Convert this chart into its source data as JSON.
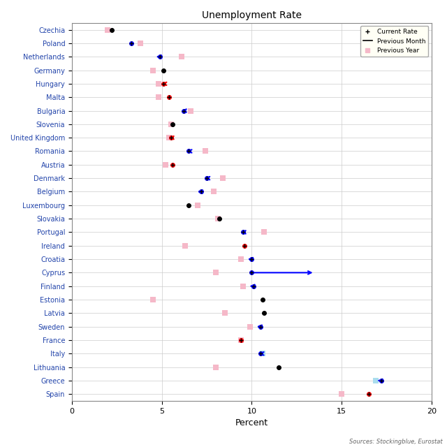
{
  "title": "Unemployment Rate",
  "xlabel": "Percent",
  "source": "Sources: Stockingblue, Eurostat",
  "countries": [
    "Czechia",
    "Poland",
    "Netherlands",
    "Germany",
    "Hungary",
    "Malta",
    "Bulgaria",
    "Slovenia",
    "United Kingdom",
    "Romania",
    "Austria",
    "Denmark",
    "Belgium",
    "Luxembourg",
    "Slovakia",
    "Portugal",
    "Ireland",
    "Croatia",
    "Cyprus",
    "Finland",
    "Estonia",
    "Latvia",
    "Sweden",
    "France",
    "Italy",
    "Lithuania",
    "Greece",
    "Spain"
  ],
  "current_rate": [
    2.2,
    3.3,
    4.9,
    5.1,
    5.1,
    5.4,
    6.2,
    5.6,
    5.5,
    6.5,
    5.6,
    7.5,
    7.2,
    6.5,
    8.2,
    9.5,
    9.6,
    10.0,
    10.0,
    10.1,
    10.6,
    10.7,
    10.5,
    9.4,
    10.5,
    11.5,
    17.2,
    16.5
  ],
  "previous_month": [
    null,
    3.3,
    4.7,
    null,
    5.0,
    null,
    6.1,
    null,
    5.4,
    6.4,
    null,
    7.4,
    7.0,
    null,
    null,
    9.4,
    null,
    9.8,
    13.5,
    9.9,
    null,
    null,
    10.3,
    null,
    10.4,
    null,
    17.0,
    null
  ],
  "line_color": [
    "black",
    "blue",
    "blue",
    "black",
    "red",
    "red",
    "blue",
    "black",
    "red",
    "blue",
    "red",
    "blue",
    "blue",
    "black",
    "black",
    "blue",
    "red",
    "blue",
    "blue",
    "blue",
    "black",
    "black",
    "blue",
    "red",
    "blue",
    "black",
    "blue",
    "red"
  ],
  "previous_year": [
    2.0,
    3.8,
    6.1,
    4.5,
    4.8,
    4.8,
    6.6,
    5.5,
    5.4,
    7.4,
    5.2,
    8.4,
    7.9,
    7.0,
    8.1,
    10.7,
    6.3,
    9.4,
    8.0,
    9.5,
    4.5,
    8.5,
    9.9,
    9.4,
    10.6,
    8.0,
    16.9,
    15.0
  ],
  "italy_prev_year_color": "#aaddee",
  "greece_prev_year_color": "#aaddee",
  "pink_color": "#f5b8c8",
  "xlim": [
    0,
    20
  ],
  "xticks": [
    0,
    5,
    10,
    15,
    20
  ],
  "figsize": [
    6.4,
    6.4
  ],
  "dpi": 100
}
